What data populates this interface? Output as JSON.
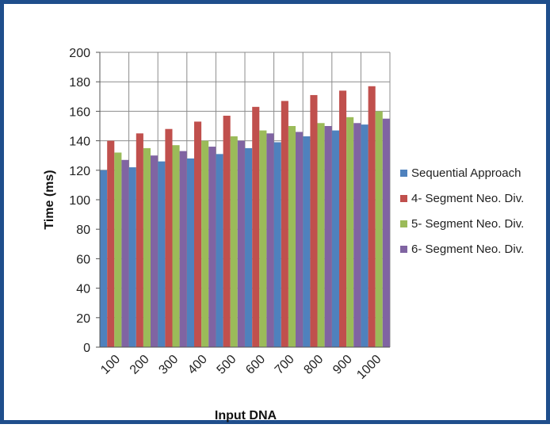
{
  "chart_data": {
    "type": "bar",
    "title": "",
    "xlabel": "Input DNA",
    "ylabel": "Time (ms)",
    "ylim": [
      0,
      200
    ],
    "yticks": [
      0,
      20,
      40,
      60,
      80,
      100,
      120,
      140,
      160,
      180,
      200
    ],
    "grid": true,
    "legend_position": "right",
    "categories": [
      "100",
      "200",
      "300",
      "400",
      "500",
      "600",
      "700",
      "800",
      "900",
      "1000"
    ],
    "series": [
      {
        "name": "Sequential Approach",
        "color": "#4f81bd",
        "values": [
          120,
          122,
          126,
          128,
          131,
          135,
          139,
          143,
          147,
          151
        ]
      },
      {
        "name": "4- Segment Neo. Div.",
        "color": "#c0504d",
        "values": [
          140,
          145,
          148,
          153,
          157,
          163,
          167,
          171,
          174,
          177
        ]
      },
      {
        "name": "5- Segment Neo. Div.",
        "color": "#9bbb59",
        "values": [
          132,
          135,
          137,
          140,
          143,
          147,
          150,
          152,
          156,
          160
        ]
      },
      {
        "name": "6- Segment Neo. Div.",
        "color": "#8064a2",
        "values": [
          127,
          130,
          133,
          136,
          140,
          145,
          146,
          150,
          152,
          155
        ]
      }
    ]
  }
}
